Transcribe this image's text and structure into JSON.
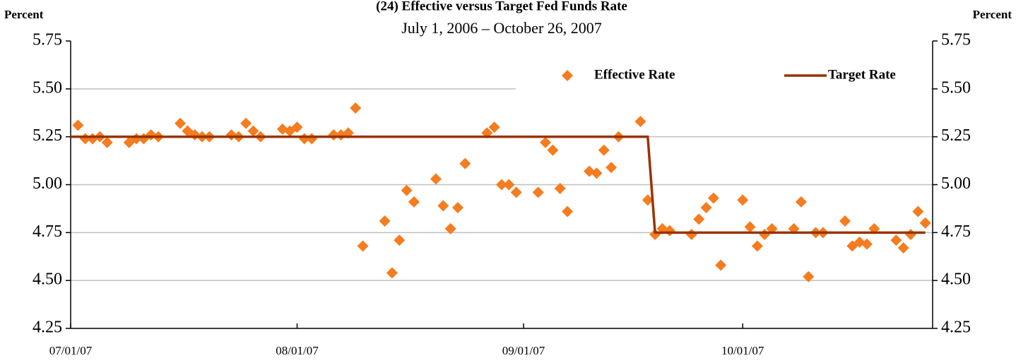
{
  "chart_data": {
    "type": "line",
    "title": "(24) Effective versus Target Fed Funds Rate",
    "subtitle": "July 1, 2006 – October 26, 2007",
    "y_label": "Percent",
    "y2_label": "Percent",
    "xlim": [
      "07/01/07",
      "10/27/07"
    ],
    "xticks": [
      "07/01/07",
      "08/01/07",
      "09/01/07",
      "10/01/07"
    ],
    "ylim": [
      4.25,
      5.75
    ],
    "yticks": [
      4.25,
      {
        "value": 4.5,
        "label": "4.50"
      },
      4.75,
      {
        "value": 5.0,
        "label": "5.00"
      },
      5.25,
      {
        "value": 5.5,
        "label": "5.50"
      },
      5.75
    ],
    "y2lim": [
      4.25,
      5.75
    ],
    "y2ticks": [
      4.25,
      {
        "value": 4.5,
        "label": "4.50"
      },
      4.75,
      {
        "value": 5.0,
        "label": "5.00"
      },
      5.25,
      {
        "value": 5.5,
        "label": "5.50"
      },
      5.75
    ],
    "grid": true,
    "legend": "top-right",
    "series": [
      {
        "name": "Effective Rate",
        "color": "#f57c1f",
        "mode": "markers",
        "x": [
          "07/02/07",
          "07/03/07",
          "07/04/07",
          "07/05/07",
          "07/06/07",
          "07/09/07",
          "07/10/07",
          "07/11/07",
          "07/12/07",
          "07/13/07",
          "07/16/07",
          "07/17/07",
          "07/18/07",
          "07/19/07",
          "07/20/07",
          "07/23/07",
          "07/24/07",
          "07/25/07",
          "07/26/07",
          "07/27/07",
          "07/30/07",
          "07/31/07",
          "08/01/07",
          "08/02/07",
          "08/03/07",
          "08/06/07",
          "08/07/07",
          "08/08/07",
          "08/09/07",
          "08/10/07",
          "08/13/07",
          "08/14/07",
          "08/15/07",
          "08/16/07",
          "08/17/07",
          "08/20/07",
          "08/21/07",
          "08/22/07",
          "08/23/07",
          "08/24/07",
          "08/27/07",
          "08/28/07",
          "08/29/07",
          "08/30/07",
          "08/31/07",
          "09/03/07",
          "09/04/07",
          "09/05/07",
          "09/06/07",
          "09/07/07",
          "09/10/07",
          "09/11/07",
          "09/12/07",
          "09/13/07",
          "09/14/07",
          "09/17/07",
          "09/18/07",
          "09/19/07",
          "09/20/07",
          "09/21/07",
          "09/24/07",
          "09/25/07",
          "09/26/07",
          "09/27/07",
          "09/28/07",
          "10/01/07",
          "10/02/07",
          "10/03/07",
          "10/04/07",
          "10/05/07",
          "10/08/07",
          "10/09/07",
          "10/10/07",
          "10/11/07",
          "10/12/07",
          "10/15/07",
          "10/16/07",
          "10/17/07",
          "10/18/07",
          "10/19/07",
          "10/22/07",
          "10/23/07",
          "10/24/07",
          "10/25/07",
          "10/26/07"
        ],
        "values": [
          5.31,
          5.24,
          5.24,
          5.25,
          5.22,
          5.22,
          5.24,
          5.24,
          5.26,
          5.25,
          5.32,
          5.28,
          5.26,
          5.25,
          5.25,
          5.26,
          5.25,
          5.32,
          5.28,
          5.25,
          5.29,
          5.28,
          5.3,
          5.24,
          5.24,
          5.26,
          5.26,
          5.27,
          5.4,
          4.68,
          4.81,
          4.54,
          4.71,
          4.97,
          4.91,
          5.03,
          4.89,
          4.77,
          4.88,
          5.11,
          5.27,
          5.3,
          5.0,
          5.0,
          4.96,
          4.96,
          5.22,
          5.18,
          4.98,
          4.86,
          5.07,
          5.06,
          5.18,
          5.09,
          5.25,
          5.33,
          4.92,
          4.74,
          4.77,
          4.76,
          4.74,
          4.82,
          4.88,
          4.93,
          4.58,
          4.92,
          4.78,
          4.68,
          4.74,
          4.77,
          4.77,
          4.91,
          4.52,
          4.75,
          4.75,
          4.81,
          4.68,
          4.7,
          4.69,
          4.77,
          4.71,
          4.67,
          4.74,
          4.86,
          4.8
        ]
      },
      {
        "name": "Target Rate",
        "color": "#993300",
        "mode": "line",
        "x": [
          "07/01/07",
          "09/18/07",
          "09/19/07",
          "10/26/07"
        ],
        "values": [
          5.25,
          5.25,
          4.75,
          4.75
        ]
      }
    ]
  }
}
